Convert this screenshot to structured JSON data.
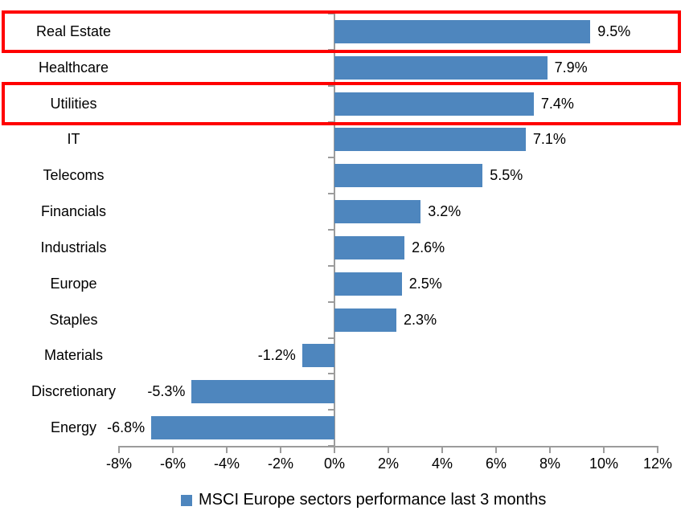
{
  "chart_data": {
    "type": "bar",
    "orientation": "horizontal",
    "title": "",
    "categories": [
      "Real Estate",
      "Healthcare",
      "Utilities",
      "IT",
      "Telecoms",
      "Financials",
      "Industrials",
      "Europe",
      "Staples",
      "Materials",
      "Discretionary",
      "Energy"
    ],
    "values": [
      9.5,
      7.9,
      7.4,
      7.1,
      5.5,
      3.2,
      2.6,
      2.5,
      2.3,
      -1.2,
      -5.3,
      -6.8
    ],
    "value_labels": [
      "9.5%",
      "7.9%",
      "7.4%",
      "7.1%",
      "5.5%",
      "3.2%",
      "2.6%",
      "2.5%",
      "2.3%",
      "-1.2%",
      "-5.3%",
      "-6.8%"
    ],
    "xlim": [
      -8,
      12
    ],
    "x_tick_labels": [
      "-8%",
      "-6%",
      "-4%",
      "-2%",
      "0%",
      "2%",
      "4%",
      "6%",
      "8%",
      "10%",
      "12%"
    ],
    "grid": false,
    "legend": {
      "label": "MSCI Europe sectors performance last 3 months",
      "position": "bottom"
    },
    "highlights": {
      "categories": [
        "Real Estate",
        "Utilities"
      ],
      "color": "#FF0000"
    },
    "colors": {
      "bar": "#4E86BE",
      "axis": "#9C9C9C",
      "text": "#000000",
      "background": "#FFFFFF"
    }
  }
}
